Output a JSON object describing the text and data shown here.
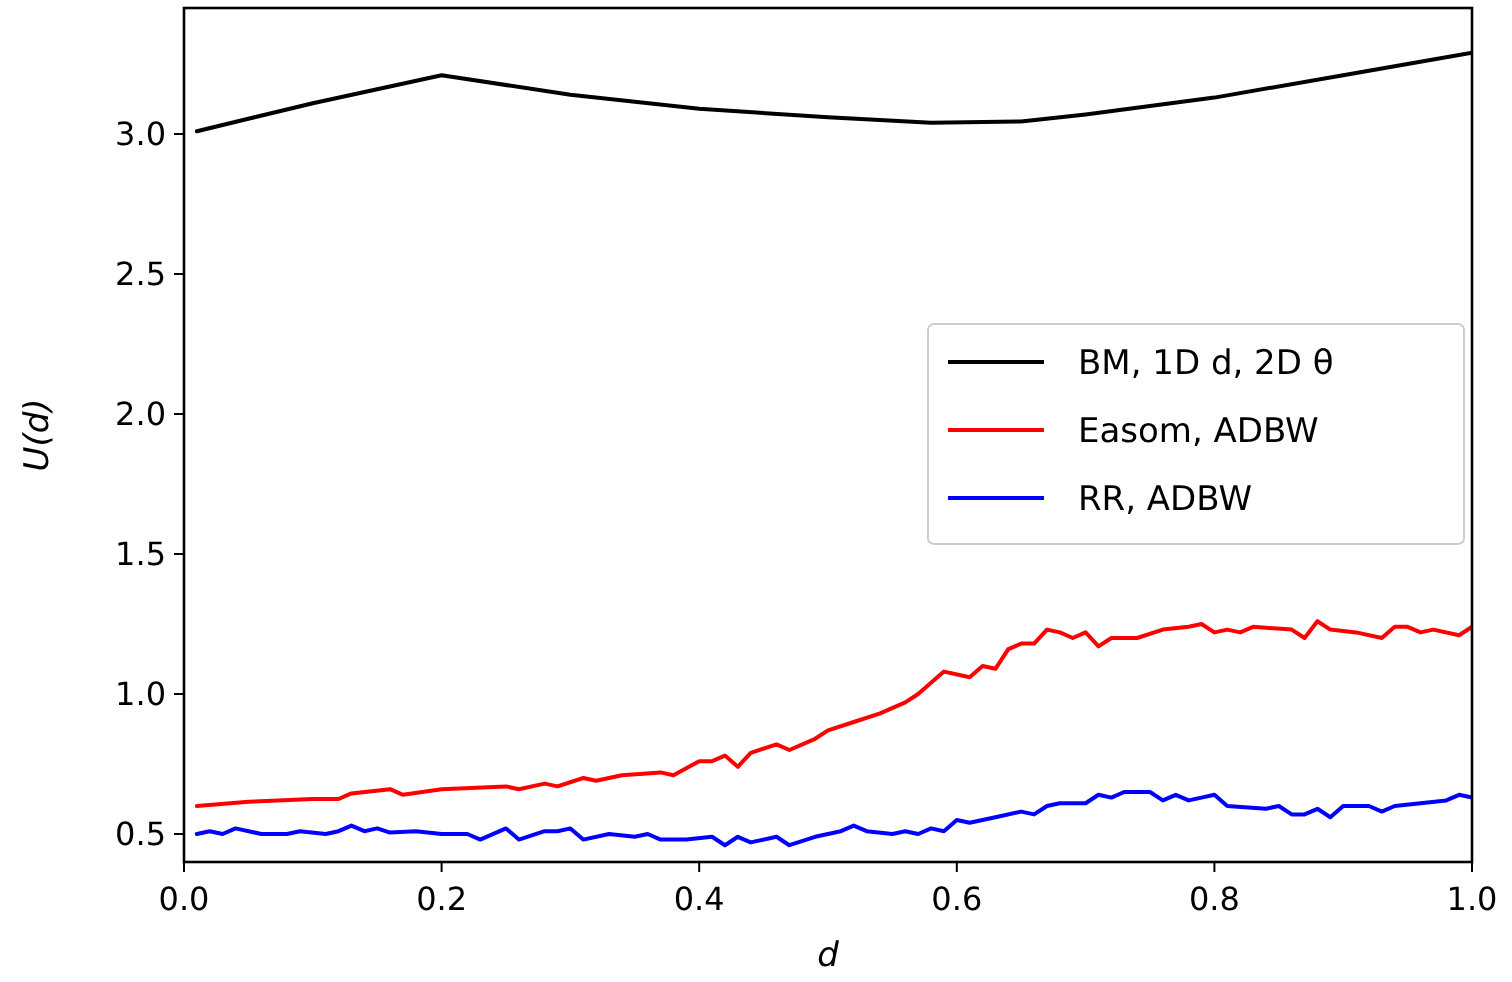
{
  "chart_data": {
    "type": "line",
    "xlabel": "d",
    "ylabel": "U(d)",
    "xlim": [
      0,
      1
    ],
    "ylim": [
      0.4,
      3.45
    ],
    "xticks": [
      {
        "value": 0,
        "label": "0.0"
      },
      0.2,
      0.4,
      0.6,
      0.8,
      {
        "value": 1,
        "label": "1.0"
      }
    ],
    "yticks": [
      0.5,
      {
        "value": 1,
        "label": "1.0"
      },
      1.5,
      {
        "value": 2,
        "label": "2.0"
      },
      2.5,
      {
        "value": 3,
        "label": "3.0"
      }
    ],
    "grid": false,
    "legend": "right",
    "line_style": "solid",
    "marker": "none",
    "series": [
      {
        "name": "BM, 1D d, 2D θ",
        "color": "#000000",
        "x": [
          0.01,
          0.1,
          0.2,
          0.3,
          0.4,
          0.5,
          0.58,
          0.65,
          0.7,
          0.8,
          0.9,
          1.0
        ],
        "values": [
          3.01,
          3.11,
          3.21,
          3.14,
          3.09,
          3.06,
          3.04,
          3.045,
          3.07,
          3.13,
          3.21,
          3.29
        ]
      },
      {
        "name": "Easom, ADBW",
        "color": "#ff0000",
        "x": [
          0.01,
          0.05,
          0.1,
          0.12,
          0.13,
          0.16,
          0.17,
          0.2,
          0.25,
          0.26,
          0.28,
          0.29,
          0.31,
          0.32,
          0.34,
          0.37,
          0.38,
          0.4,
          0.41,
          0.42,
          0.43,
          0.44,
          0.46,
          0.47,
          0.49,
          0.5,
          0.52,
          0.54,
          0.56,
          0.57,
          0.59,
          0.61,
          0.62,
          0.63,
          0.64,
          0.65,
          0.66,
          0.67,
          0.68,
          0.69,
          0.7,
          0.71,
          0.72,
          0.74,
          0.76,
          0.78,
          0.79,
          0.8,
          0.81,
          0.82,
          0.83,
          0.86,
          0.87,
          0.88,
          0.89,
          0.91,
          0.93,
          0.94,
          0.95,
          0.96,
          0.97,
          0.99,
          1.0
        ],
        "values": [
          0.6,
          0.615,
          0.625,
          0.625,
          0.645,
          0.66,
          0.64,
          0.66,
          0.67,
          0.66,
          0.68,
          0.67,
          0.7,
          0.69,
          0.71,
          0.72,
          0.71,
          0.76,
          0.76,
          0.78,
          0.74,
          0.79,
          0.82,
          0.8,
          0.84,
          0.87,
          0.9,
          0.93,
          0.97,
          1.0,
          1.08,
          1.06,
          1.1,
          1.09,
          1.16,
          1.18,
          1.18,
          1.23,
          1.22,
          1.2,
          1.22,
          1.17,
          1.2,
          1.2,
          1.23,
          1.24,
          1.25,
          1.22,
          1.23,
          1.22,
          1.24,
          1.23,
          1.2,
          1.26,
          1.23,
          1.22,
          1.2,
          1.24,
          1.24,
          1.22,
          1.23,
          1.21,
          1.24
        ]
      },
      {
        "name": "RR, ADBW",
        "color": "#0000ff",
        "x": [
          0.01,
          0.02,
          0.03,
          0.04,
          0.06,
          0.08,
          0.09,
          0.11,
          0.12,
          0.13,
          0.14,
          0.15,
          0.16,
          0.18,
          0.2,
          0.22,
          0.23,
          0.25,
          0.26,
          0.28,
          0.29,
          0.3,
          0.31,
          0.33,
          0.35,
          0.36,
          0.37,
          0.39,
          0.41,
          0.42,
          0.43,
          0.44,
          0.46,
          0.47,
          0.49,
          0.51,
          0.52,
          0.53,
          0.55,
          0.56,
          0.57,
          0.58,
          0.59,
          0.6,
          0.61,
          0.63,
          0.65,
          0.66,
          0.67,
          0.68,
          0.7,
          0.71,
          0.72,
          0.73,
          0.75,
          0.76,
          0.77,
          0.78,
          0.79,
          0.8,
          0.81,
          0.84,
          0.85,
          0.86,
          0.87,
          0.88,
          0.89,
          0.9,
          0.92,
          0.93,
          0.94,
          0.96,
          0.98,
          0.99,
          1.0
        ],
        "values": [
          0.5,
          0.51,
          0.5,
          0.52,
          0.5,
          0.5,
          0.51,
          0.5,
          0.51,
          0.53,
          0.51,
          0.52,
          0.505,
          0.51,
          0.5,
          0.5,
          0.48,
          0.52,
          0.48,
          0.51,
          0.51,
          0.52,
          0.48,
          0.5,
          0.49,
          0.5,
          0.48,
          0.48,
          0.49,
          0.46,
          0.49,
          0.47,
          0.49,
          0.46,
          0.49,
          0.51,
          0.53,
          0.51,
          0.5,
          0.51,
          0.5,
          0.52,
          0.51,
          0.55,
          0.54,
          0.56,
          0.58,
          0.57,
          0.6,
          0.61,
          0.61,
          0.64,
          0.63,
          0.65,
          0.65,
          0.62,
          0.64,
          0.62,
          0.63,
          0.64,
          0.6,
          0.59,
          0.6,
          0.57,
          0.57,
          0.59,
          0.56,
          0.6,
          0.6,
          0.58,
          0.6,
          0.61,
          0.62,
          0.64,
          0.63
        ]
      }
    ]
  }
}
